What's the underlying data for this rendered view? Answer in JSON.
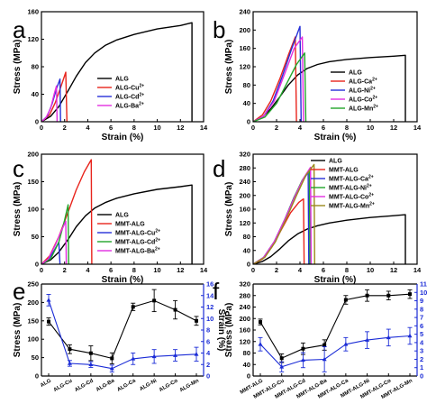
{
  "figure": {
    "panel_labels": [
      "a",
      "b",
      "c",
      "d",
      "e",
      "f"
    ]
  },
  "colors": {
    "axis": "#000000",
    "right_axis": "#1a2bd6",
    "stress_series": "#000000",
    "strain_series": "#1a2bd6"
  },
  "chart_data": [
    {
      "panel": "a",
      "type": "line",
      "xlabel": "Strain (%)",
      "ylabel": "Stress (MPa)",
      "xlim": [
        0,
        14
      ],
      "ylim": [
        0,
        160
      ],
      "xticks": [
        0,
        2,
        4,
        6,
        8,
        10,
        12,
        14
      ],
      "yticks": [
        0,
        40,
        80,
        120,
        160
      ],
      "legend_position": "middle-right",
      "series": [
        {
          "name": "ALG",
          "color": "#000000",
          "points": [
            [
              0,
              0
            ],
            [
              0.8,
              8
            ],
            [
              1.5,
              22
            ],
            [
              2.3,
              45
            ],
            [
              3.0,
              66
            ],
            [
              3.8,
              86
            ],
            [
              4.6,
              100
            ],
            [
              5.5,
              111
            ],
            [
              6.5,
              119
            ],
            [
              8,
              127
            ],
            [
              10,
              135
            ],
            [
              12,
              140
            ],
            [
              13,
              144
            ],
            [
              13,
              0
            ]
          ]
        },
        {
          "name": "ALG-Cu2+",
          "color": "#e8241c",
          "points": [
            [
              0,
              0
            ],
            [
              0.7,
              10
            ],
            [
              1.2,
              28
            ],
            [
              1.7,
              52
            ],
            [
              2.1,
              72
            ],
            [
              2.2,
              0
            ]
          ]
        },
        {
          "name": "ALG-Cd2+",
          "color": "#2630d8",
          "points": [
            [
              0,
              0
            ],
            [
              0.5,
              8
            ],
            [
              0.9,
              25
            ],
            [
              1.3,
              48
            ],
            [
              1.6,
              62
            ],
            [
              1.65,
              0
            ]
          ]
        },
        {
          "name": "ALG-Ba2+",
          "color": "#e22ee0",
          "points": [
            [
              0,
              0
            ],
            [
              0.4,
              6
            ],
            [
              0.8,
              20
            ],
            [
              1.1,
              40
            ],
            [
              1.3,
              52
            ],
            [
              1.35,
              0
            ]
          ]
        }
      ]
    },
    {
      "panel": "b",
      "type": "line",
      "xlabel": "Strain (%)",
      "ylabel": "Stress (MPa)",
      "xlim": [
        0,
        14
      ],
      "ylim": [
        0,
        240
      ],
      "xticks": [
        0,
        2,
        4,
        6,
        8,
        10,
        12,
        14
      ],
      "yticks": [
        0,
        40,
        80,
        120,
        160,
        200,
        240
      ],
      "legend_position": "bottom-right",
      "series": [
        {
          "name": "ALG",
          "color": "#000000",
          "points": [
            [
              0,
              0
            ],
            [
              0.8,
              10
            ],
            [
              1.5,
              28
            ],
            [
              2.3,
              55
            ],
            [
              3.0,
              80
            ],
            [
              3.8,
              102
            ],
            [
              4.6,
              116
            ],
            [
              5.5,
              125
            ],
            [
              6.5,
              131
            ],
            [
              8,
              136
            ],
            [
              10,
              140
            ],
            [
              12,
              143
            ],
            [
              13,
              145
            ],
            [
              13,
              0
            ]
          ]
        },
        {
          "name": "ALG-Ca2+",
          "color": "#e8241c",
          "points": [
            [
              0,
              0
            ],
            [
              0.8,
              15
            ],
            [
              1.5,
              45
            ],
            [
              2.3,
              95
            ],
            [
              3.0,
              145
            ],
            [
              3.6,
              185
            ],
            [
              3.7,
              0
            ]
          ]
        },
        {
          "name": "ALG-Ni2+",
          "color": "#2630d8",
          "points": [
            [
              0,
              0
            ],
            [
              0.9,
              12
            ],
            [
              1.7,
              45
            ],
            [
              2.5,
              100
            ],
            [
              3.3,
              160
            ],
            [
              4.0,
              208
            ],
            [
              4.1,
              0
            ]
          ]
        },
        {
          "name": "ALG-Co2+",
          "color": "#e22ee0",
          "points": [
            [
              0,
              0
            ],
            [
              0.9,
              12
            ],
            [
              1.8,
              45
            ],
            [
              2.7,
              105
            ],
            [
              3.5,
              160
            ],
            [
              4.2,
              185
            ],
            [
              4.3,
              0
            ]
          ]
        },
        {
          "name": "ALG-Mn2+",
          "color": "#22a52a",
          "points": [
            [
              0,
              0
            ],
            [
              1.0,
              10
            ],
            [
              2.0,
              40
            ],
            [
              2.9,
              85
            ],
            [
              3.7,
              125
            ],
            [
              4.4,
              150
            ],
            [
              4.5,
              0
            ]
          ]
        }
      ]
    },
    {
      "panel": "c",
      "type": "line",
      "xlabel": "Strain (%)",
      "ylabel": "Stress (MPa)",
      "xlim": [
        0,
        14
      ],
      "ylim": [
        0,
        200
      ],
      "xticks": [
        0,
        2,
        4,
        6,
        8,
        10,
        12,
        14
      ],
      "yticks": [
        0,
        50,
        100,
        150,
        200
      ],
      "legend_position": "bottom-right",
      "series": [
        {
          "name": "ALG",
          "color": "#000000",
          "points": [
            [
              0,
              0
            ],
            [
              0.8,
              8
            ],
            [
              1.5,
              22
            ],
            [
              2.3,
              45
            ],
            [
              3.0,
              68
            ],
            [
              3.8,
              88
            ],
            [
              4.6,
              102
            ],
            [
              5.5,
              112
            ],
            [
              6.5,
              120
            ],
            [
              8,
              128
            ],
            [
              10,
              136
            ],
            [
              12,
              141
            ],
            [
              13,
              144
            ],
            [
              13,
              0
            ]
          ]
        },
        {
          "name": "MMT-ALG",
          "color": "#e8241c",
          "points": [
            [
              0,
              0
            ],
            [
              0.7,
              15
            ],
            [
              1.5,
              50
            ],
            [
              2.3,
              95
            ],
            [
              3.0,
              135
            ],
            [
              3.7,
              168
            ],
            [
              4.3,
              190
            ],
            [
              4.35,
              0
            ]
          ]
        },
        {
          "name": "MMT-ALG-Cu2+",
          "color": "#2630d8",
          "points": [
            [
              0,
              0
            ],
            [
              0.6,
              8
            ],
            [
              1.1,
              25
            ],
            [
              1.5,
              40
            ],
            [
              1.6,
              0
            ]
          ]
        },
        {
          "name": "MMT-ALG-Cd2+",
          "color": "#22a52a",
          "points": [
            [
              0,
              0
            ],
            [
              0.8,
              10
            ],
            [
              1.5,
              40
            ],
            [
              2.0,
              80
            ],
            [
              2.3,
              108
            ],
            [
              2.35,
              0
            ]
          ]
        },
        {
          "name": "MMT-ALG-Ba2+",
          "color": "#e22ee0",
          "points": [
            [
              0,
              0
            ],
            [
              0.6,
              10
            ],
            [
              1.2,
              35
            ],
            [
              1.7,
              60
            ],
            [
              2.1,
              78
            ],
            [
              2.15,
              0
            ]
          ]
        }
      ]
    },
    {
      "panel": "d",
      "type": "line",
      "xlabel": "Strain (%)",
      "ylabel": "Stress (MPa)",
      "xlim": [
        0,
        14
      ],
      "ylim": [
        0,
        320
      ],
      "xticks": [
        0,
        2,
        4,
        6,
        8,
        10,
        12,
        14
      ],
      "yticks": [
        0,
        40,
        80,
        120,
        160,
        200,
        240,
        280,
        320
      ],
      "legend_position": "top-right",
      "series": [
        {
          "name": "ALG",
          "color": "#000000",
          "points": [
            [
              0,
              0
            ],
            [
              0.8,
              8
            ],
            [
              1.5,
              22
            ],
            [
              2.3,
              45
            ],
            [
              3.0,
              68
            ],
            [
              3.8,
              88
            ],
            [
              4.6,
              102
            ],
            [
              5.5,
              112
            ],
            [
              6.5,
              120
            ],
            [
              8,
              128
            ],
            [
              10,
              136
            ],
            [
              12,
              141
            ],
            [
              13,
              144
            ],
            [
              13,
              0
            ]
          ]
        },
        {
          "name": "MMT-ALG",
          "color": "#e8241c",
          "points": [
            [
              0,
              0
            ],
            [
              0.8,
              15
            ],
            [
              1.6,
              50
            ],
            [
              2.4,
              100
            ],
            [
              3.2,
              150
            ],
            [
              3.9,
              180
            ],
            [
              4.3,
              190
            ],
            [
              4.35,
              0
            ]
          ]
        },
        {
          "name": "MMT-ALG-Ca2+",
          "color": "#2630d8",
          "points": [
            [
              0,
              0
            ],
            [
              0.9,
              20
            ],
            [
              1.8,
              65
            ],
            [
              2.7,
              130
            ],
            [
              3.5,
              195
            ],
            [
              4.2,
              240
            ],
            [
              4.7,
              268
            ],
            [
              4.75,
              0
            ]
          ]
        },
        {
          "name": "MMT-ALG-Ni2+",
          "color": "#22a52a",
          "points": [
            [
              0,
              0
            ],
            [
              0.9,
              20
            ],
            [
              1.8,
              65
            ],
            [
              2.7,
              130
            ],
            [
              3.5,
              195
            ],
            [
              4.2,
              245
            ],
            [
              4.8,
              275
            ],
            [
              4.85,
              0
            ]
          ]
        },
        {
          "name": "MMT-ALG-Co2+",
          "color": "#e22ee0",
          "points": [
            [
              0,
              0
            ],
            [
              0.9,
              20
            ],
            [
              1.8,
              65
            ],
            [
              2.7,
              130
            ],
            [
              3.6,
              200
            ],
            [
              4.3,
              250
            ],
            [
              4.9,
              282
            ],
            [
              4.95,
              0
            ]
          ]
        },
        {
          "name": "MMT-ALG-Mn2+",
          "color": "#9a8a1c",
          "points": [
            [
              0,
              0
            ],
            [
              1.0,
              20
            ],
            [
              1.9,
              65
            ],
            [
              2.8,
              130
            ],
            [
              3.7,
              200
            ],
            [
              4.5,
              258
            ],
            [
              5.2,
              290
            ],
            [
              5.25,
              0
            ]
          ]
        }
      ]
    },
    {
      "panel": "e",
      "type": "line",
      "ylabel": "Stress (MPa)",
      "y2label": "Strain (%)",
      "ylim": [
        0,
        250
      ],
      "y2lim": [
        0,
        16
      ],
      "yticks": [
        0,
        50,
        100,
        150,
        200,
        250
      ],
      "y2ticks": [
        0,
        2,
        4,
        6,
        8,
        10,
        12,
        14,
        16
      ],
      "categories": [
        "ALG",
        "ALG-Cu",
        "ALG-Cd",
        "ALG-Ba",
        "ALG-Ca",
        "ALG-Ni",
        "ALG-Co",
        "ALG-Mn"
      ],
      "series": [
        {
          "axis": "left",
          "color": "#000000",
          "marker": "square",
          "values": [
            148,
            73,
            62,
            48,
            188,
            205,
            180,
            150
          ],
          "errors": [
            10,
            12,
            20,
            15,
            10,
            30,
            25,
            12
          ]
        },
        {
          "axis": "right",
          "color": "#1a2bd6",
          "marker": "triangle",
          "values": [
            13.2,
            2.2,
            2.0,
            1.3,
            3.0,
            3.4,
            3.6,
            3.8
          ],
          "errors": [
            1.0,
            0.5,
            0.5,
            0.6,
            1.0,
            1.2,
            1.0,
            1.2
          ]
        }
      ]
    },
    {
      "panel": "f",
      "type": "line",
      "ylabel": "Stress (MPa)",
      "y2label": "Strain (%)",
      "ylim": [
        0,
        320
      ],
      "y2lim": [
        0,
        11
      ],
      "yticks": [
        0,
        40,
        80,
        120,
        160,
        200,
        240,
        280,
        320
      ],
      "y2ticks": [
        0,
        1,
        2,
        3,
        4,
        5,
        6,
        7,
        8,
        9,
        10,
        11
      ],
      "categories": [
        "MMT-ALG",
        "MMT-ALG-Cu",
        "MMT-ALG-Cd",
        "MMT-ALG-Ba",
        "MMT-ALG-Ca",
        "MMT-ALG-Ni",
        "MMT-ALG-Co",
        "MMT-ALG-Mn"
      ],
      "series": [
        {
          "axis": "left",
          "color": "#000000",
          "marker": "square",
          "values": [
            188,
            62,
            95,
            108,
            265,
            280,
            280,
            285
          ],
          "errors": [
            10,
            15,
            20,
            18,
            15,
            20,
            15,
            15
          ]
        },
        {
          "axis": "right",
          "color": "#1a2bd6",
          "marker": "triangle",
          "values": [
            3.8,
            1.1,
            1.9,
            2.0,
            3.8,
            4.3,
            4.6,
            4.8
          ],
          "errors": [
            0.8,
            0.6,
            0.9,
            1.5,
            0.8,
            1.0,
            1.0,
            1.0
          ]
        }
      ]
    }
  ]
}
